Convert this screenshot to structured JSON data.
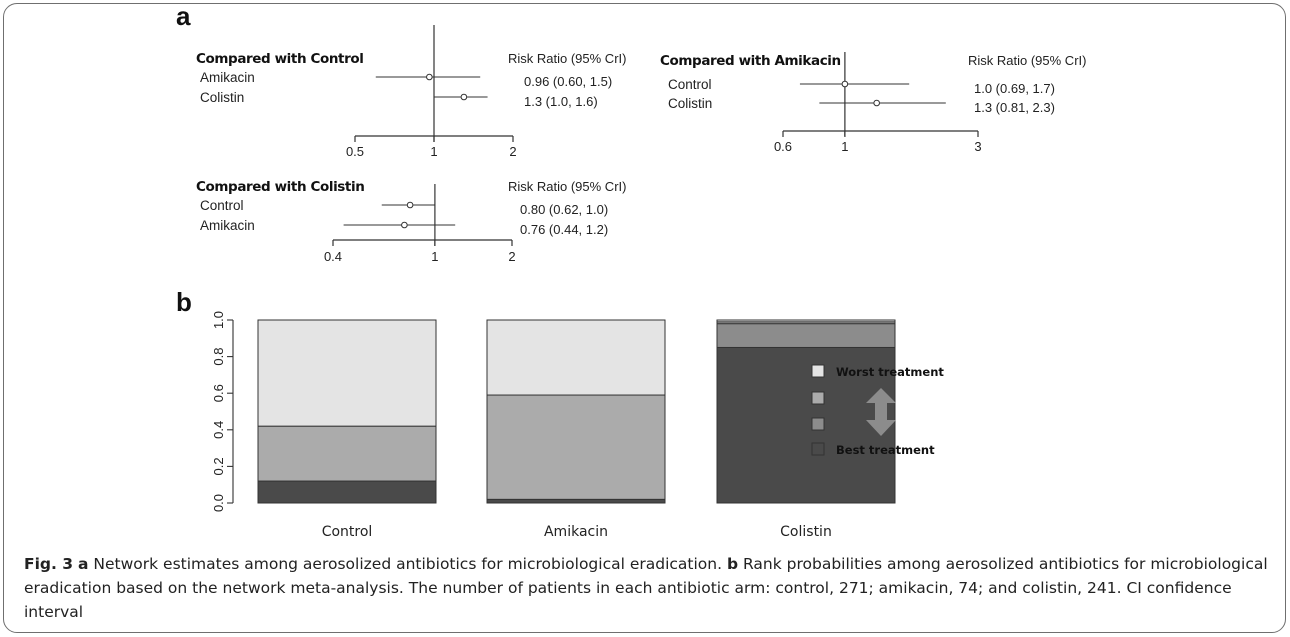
{
  "chart_data": [
    {
      "type": "forest",
      "panel": "a",
      "title": "Compared with Control",
      "column_header": "Risk Ratio (95% CrI)",
      "scale": "log",
      "ticks": [
        "0.5",
        "1",
        "2"
      ],
      "xlim": [
        0.5,
        2
      ],
      "rows": [
        {
          "label": "Amikacin",
          "estimate": 0.96,
          "lower": 0.6,
          "upper": 1.5,
          "text": "0.96 (0.60, 1.5)"
        },
        {
          "label": "Colistin",
          "estimate": 1.3,
          "lower": 1.0,
          "upper": 1.6,
          "text": "1.3 (1.0, 1.6)"
        }
      ]
    },
    {
      "type": "forest",
      "title": "Compared with Amikacin",
      "column_header": "Risk Ratio (95% CrI)",
      "scale": "log",
      "ticks": [
        "0.6",
        "1",
        "3"
      ],
      "xlim": [
        0.6,
        3
      ],
      "rows": [
        {
          "label": "Control",
          "estimate": 1.0,
          "lower": 0.69,
          "upper": 1.7,
          "text": "1.0 (0.69, 1.7)"
        },
        {
          "label": "Colistin",
          "estimate": 1.3,
          "lower": 0.81,
          "upper": 2.3,
          "text": "1.3 (0.81, 2.3)"
        }
      ]
    },
    {
      "type": "forest",
      "title": "Compared with Colistin",
      "column_header": "Risk Ratio (95% CrI)",
      "scale": "log",
      "ticks": [
        "0.4",
        "1",
        "2"
      ],
      "xlim": [
        0.4,
        2
      ],
      "rows": [
        {
          "label": "Control",
          "estimate": 0.8,
          "lower": 0.62,
          "upper": 1.0,
          "text": "0.80 (0.62, 1.0)"
        },
        {
          "label": "Amikacin",
          "estimate": 0.76,
          "lower": 0.44,
          "upper": 1.2,
          "text": "0.76 (0.44, 1.2)"
        }
      ]
    },
    {
      "type": "bar",
      "stacked": true,
      "panel": "b",
      "categories": [
        "Control",
        "Amikacin",
        "Colistin"
      ],
      "ylim": [
        0,
        1.0
      ],
      "yticks": [
        "0.0",
        "0.2",
        "0.4",
        "0.6",
        "0.8",
        "1.0"
      ],
      "series": [
        {
          "name": "Best treatment",
          "color": "#4a4a4a",
          "values": [
            0.12,
            0.02,
            0.85
          ]
        },
        {
          "name": "",
          "color": "#8c8c8c",
          "values": [
            0.0,
            0.0,
            0.13
          ]
        },
        {
          "name": "",
          "color": "#ababab",
          "values": [
            0.3,
            0.57,
            0.01
          ]
        },
        {
          "name": "Worst treatment",
          "color": "#e4e4e4",
          "values": [
            0.58,
            0.41,
            0.01
          ]
        }
      ],
      "legend": [
        "Worst treatment",
        "",
        "",
        "Best treatment"
      ],
      "legend_placement": "right"
    }
  ],
  "caption": {
    "fig_label": "Fig. 3",
    "a_label": "a",
    "a_text": " Network estimates among aerosolized antibiotics for microbiological eradication. ",
    "b_label": "b",
    "b_text": " Rank probabilities among aerosolized antibiotics for microbiological eradication based on the network meta-analysis. The number of patients in each antibiotic arm: control, 271; amikacin, 74; and colistin, 241. CI confidence interval"
  }
}
